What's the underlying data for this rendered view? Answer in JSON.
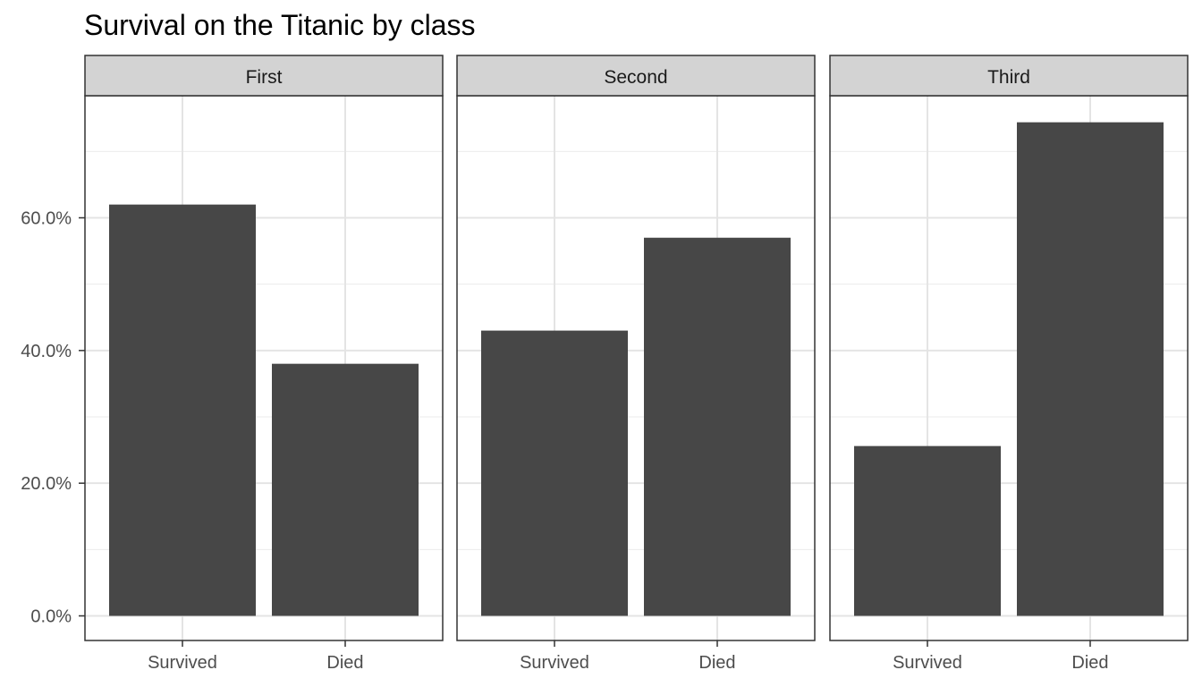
{
  "chart_data": {
    "type": "bar",
    "title": "Survival on the Titanic by class",
    "xlabel": "",
    "ylabel": "",
    "categories": [
      "Survived",
      "Died"
    ],
    "y_tick_labels": [
      "0.0%",
      "20.0%",
      "40.0%",
      "60.0%"
    ],
    "y_ticks": [
      0,
      20,
      40,
      60
    ],
    "ylim": [
      0,
      78.5
    ],
    "grid": true,
    "legend": "none",
    "bar_color": "#474747",
    "strip_fill": "#d3d3d3",
    "panels": [
      {
        "label": "First",
        "values": [
          62.0,
          38.0
        ]
      },
      {
        "label": "Second",
        "values": [
          43.0,
          57.0
        ]
      },
      {
        "label": "Third",
        "values": [
          25.6,
          74.4
        ]
      }
    ]
  }
}
